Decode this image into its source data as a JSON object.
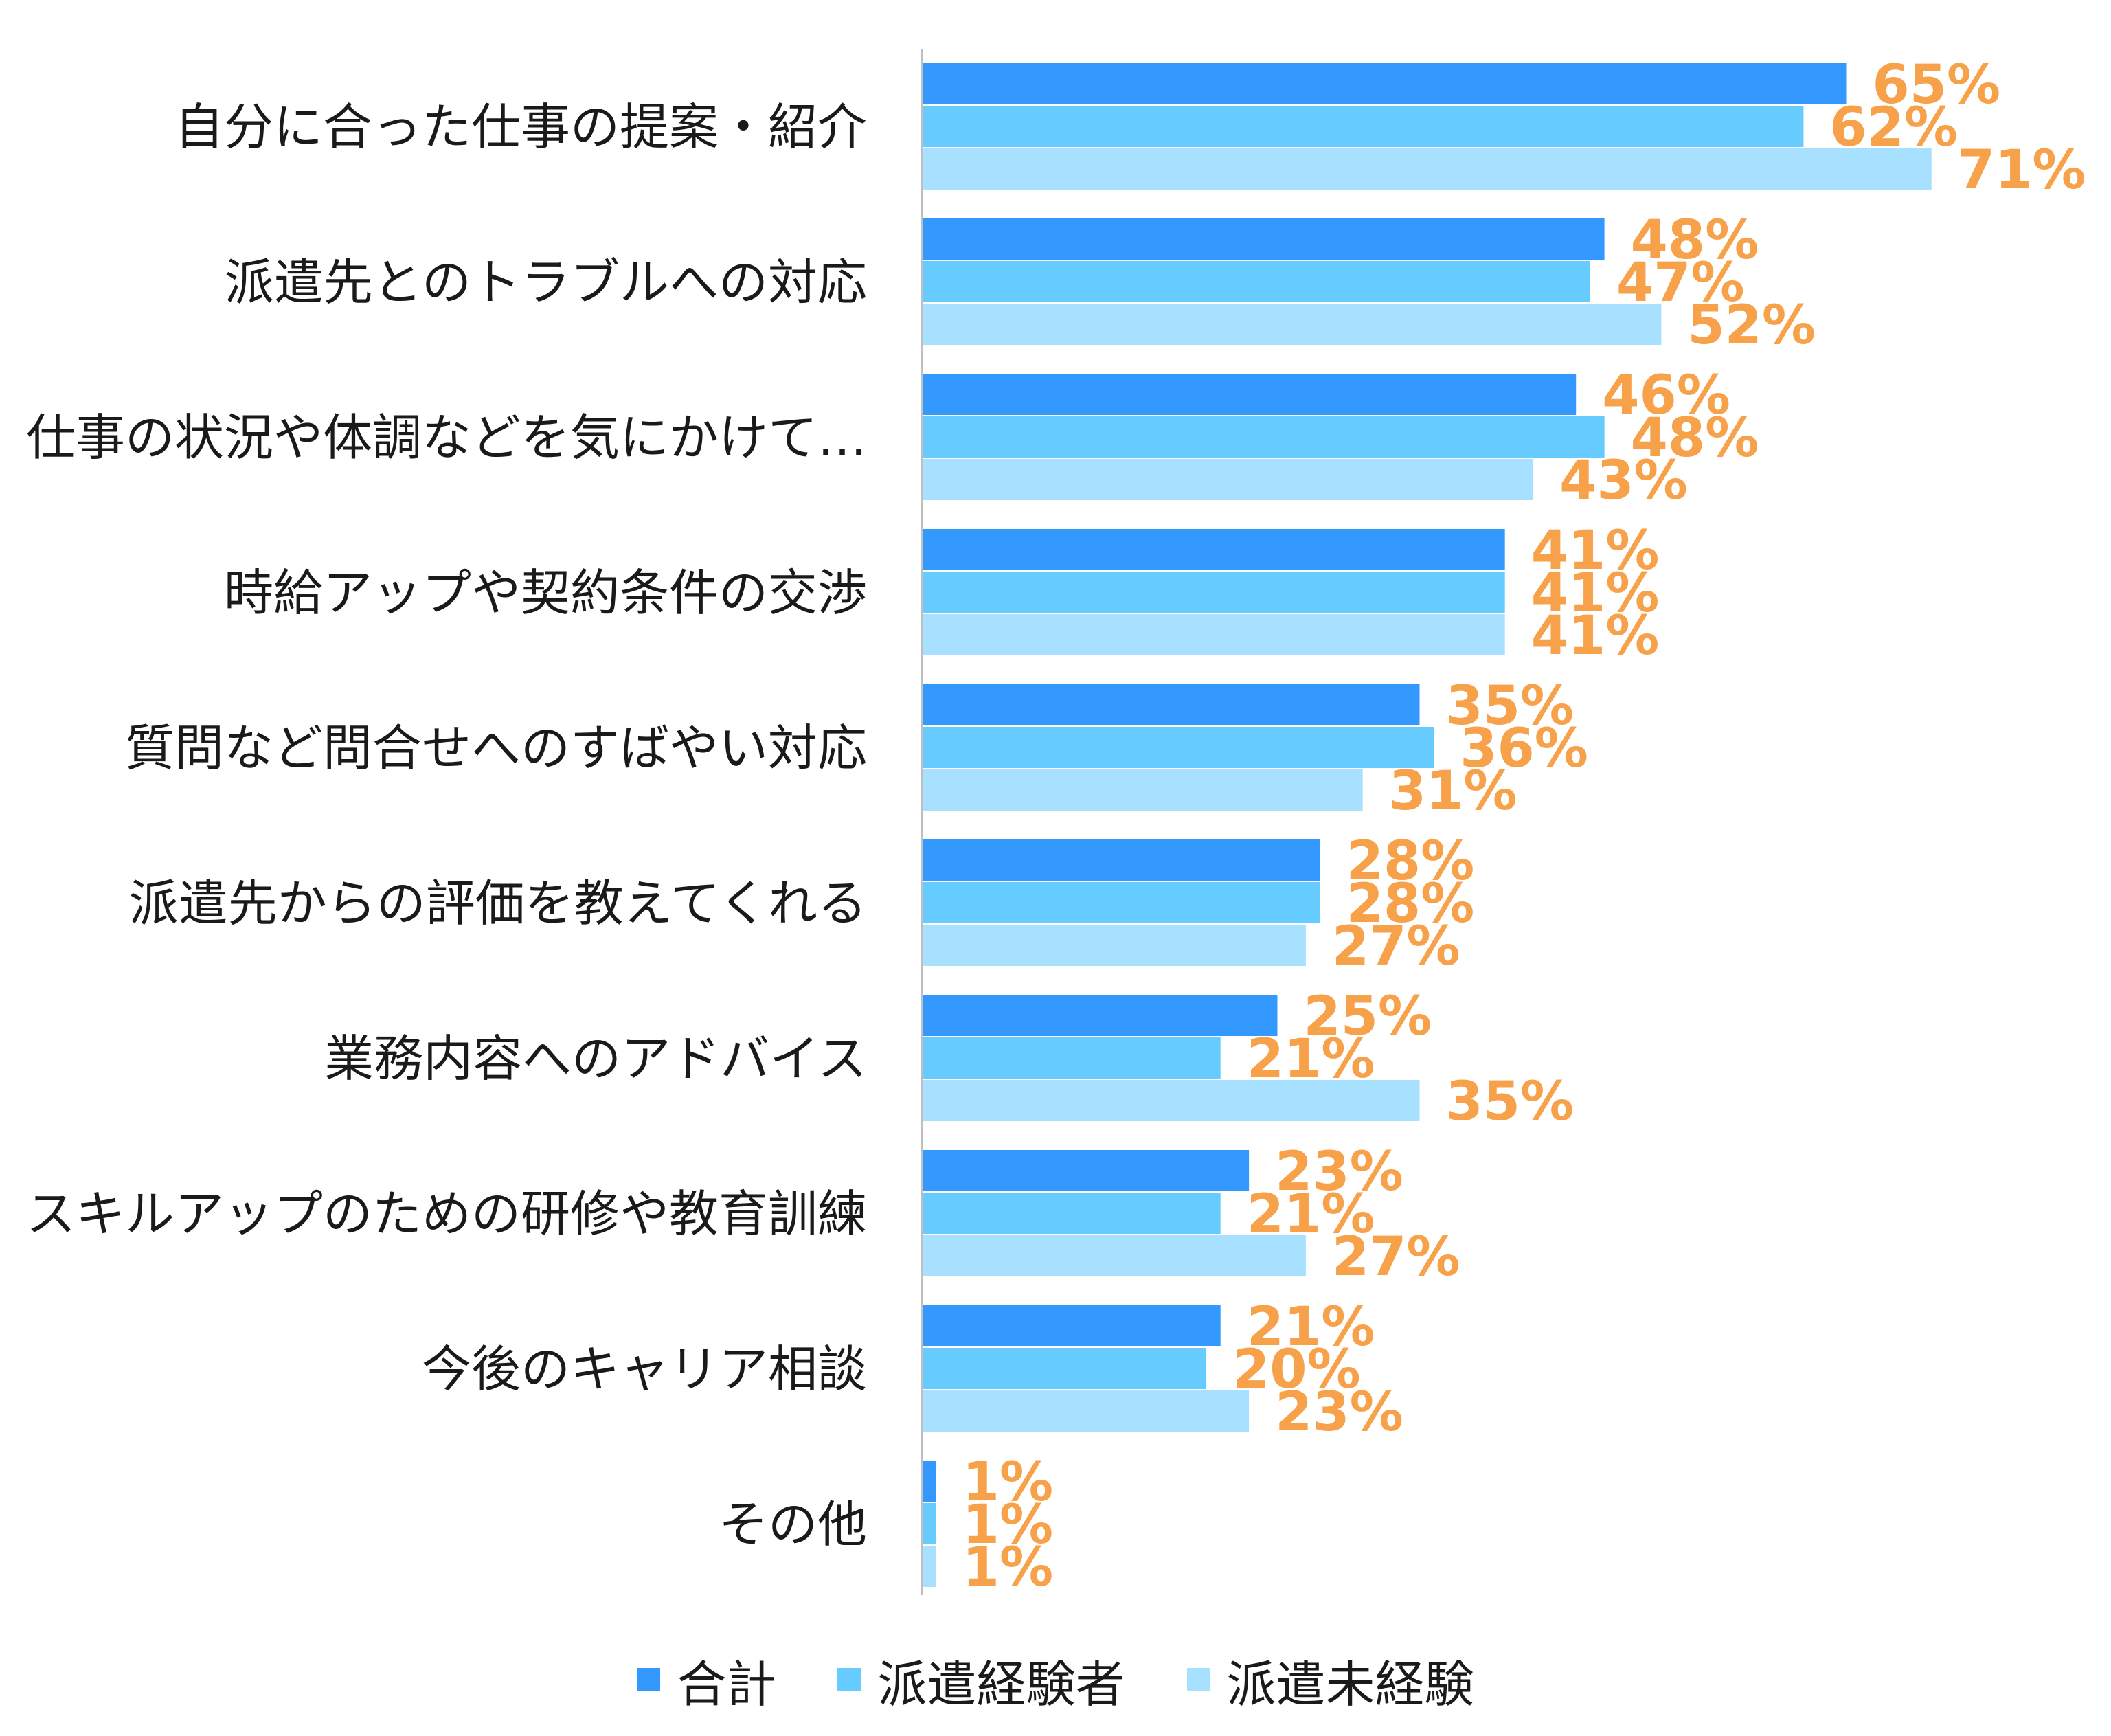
{
  "chart_data": {
    "type": "bar",
    "orientation": "horizontal",
    "categories": [
      "自分に合った仕事の提案・紹介",
      "派遣先とのトラブルへの対応",
      "仕事の状況や体調などを気にかけて…",
      "時給アップや契約条件の交渉",
      "質問など問合せへのすばやい対応",
      "派遣先からの評価を教えてくれる",
      "業務内容へのアドバイス",
      "スキルアップのための研修や教育訓練",
      "今後のキャリア相談",
      "その他"
    ],
    "series": [
      {
        "name": "合計",
        "color": "#3399FF",
        "values": [
          65,
          48,
          46,
          41,
          35,
          28,
          25,
          23,
          21,
          1
        ],
        "labels": [
          "65%",
          "48%",
          "46%",
          "41%",
          "35%",
          "28%",
          "25%",
          "23%",
          "21%",
          "1%"
        ]
      },
      {
        "name": "派遣経験者",
        "color": "#66CCFF",
        "values": [
          62,
          47,
          48,
          41,
          36,
          28,
          21,
          21,
          20,
          1
        ],
        "labels": [
          "62%",
          "47%",
          "48%",
          "41%",
          "36%",
          "28%",
          "21%",
          "21%",
          "20%",
          "1%"
        ]
      },
      {
        "name": "派遣未経験",
        "color": "#A8E0FF",
        "values": [
          71,
          52,
          43,
          41,
          31,
          27,
          35,
          27,
          23,
          1
        ],
        "labels": [
          "71%",
          "52%",
          "43%",
          "41%",
          "31%",
          "27%",
          "35%",
          "27%",
          "23%",
          "1%"
        ]
      }
    ],
    "value_unit": "%",
    "xlim": [
      0,
      71
    ],
    "grid": false,
    "legend_position": "bottom",
    "data_label_color": "#F7A14A",
    "axis_line_color": "#BFBFBF"
  }
}
